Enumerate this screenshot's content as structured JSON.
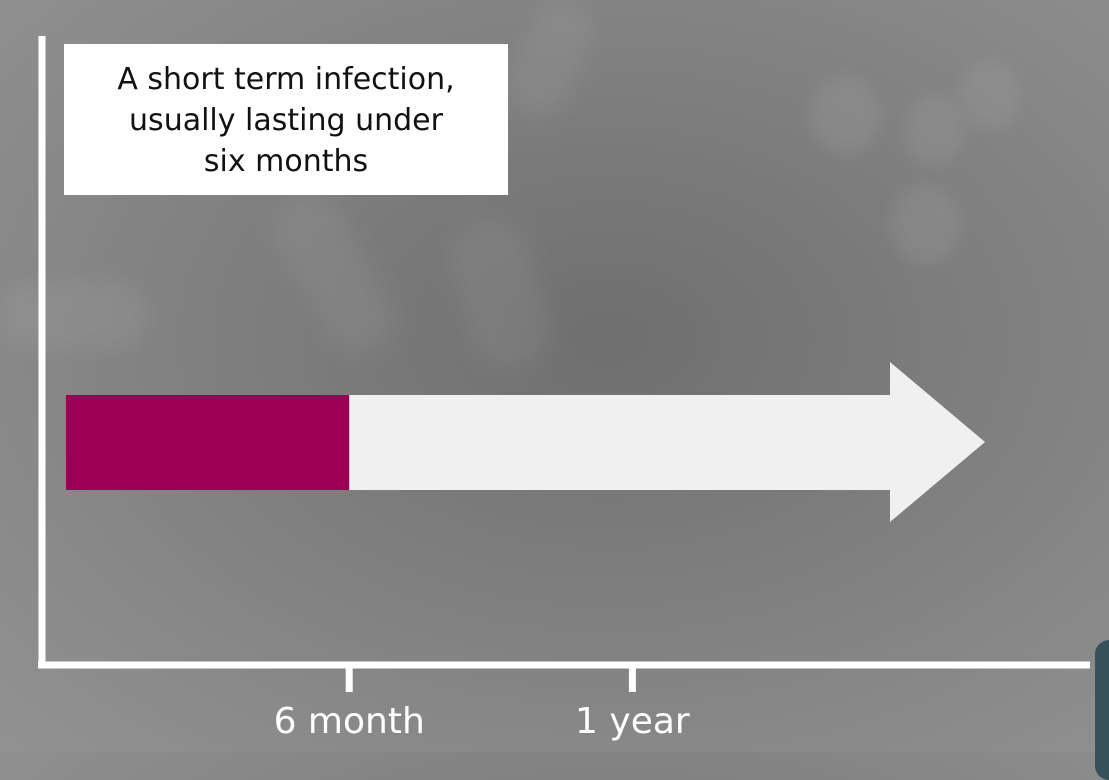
{
  "callout": {
    "lines": [
      "A short term infection,",
      "usually lasting under",
      "six months"
    ]
  },
  "timeline": {
    "ticks": [
      {
        "label": "6 month",
        "months": 6
      },
      {
        "label": "1 year",
        "months": 12
      }
    ],
    "highlight_end_months": 6
  },
  "colors": {
    "highlight": "#9b0055",
    "arrow": "#f0f0f0",
    "axis": "#ffffff",
    "callout_bg": "#ffffff"
  }
}
